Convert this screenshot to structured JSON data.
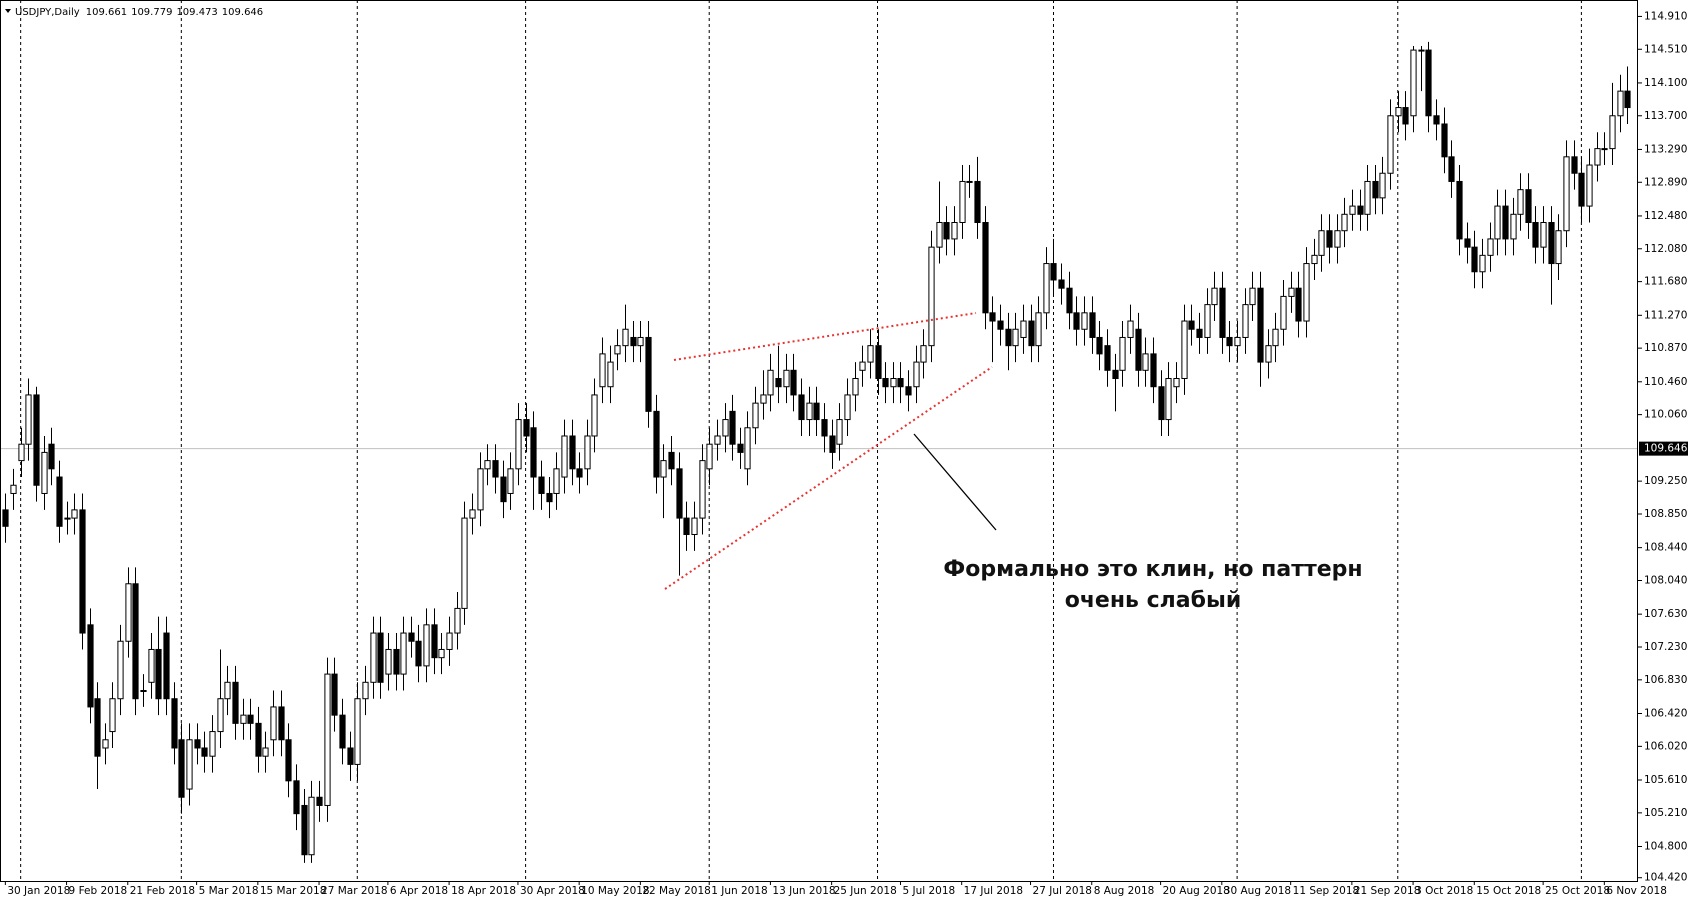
{
  "chart_data": {
    "type": "candlestick",
    "symbol": "USDJPY,Daily",
    "quote": [
      109.661,
      109.779,
      109.473,
      109.646
    ],
    "annotation": [
      "Формально это клин, но паттерн",
      "очень слабый"
    ],
    "up_color": "#ffffff",
    "down_color": "#000000",
    "xlim": [
      -0.7,
      213.4
    ],
    "ylim": [
      104.38,
      115.11
    ],
    "yticks": [
      {
        "value": 114.91,
        "label": "114.910"
      },
      {
        "value": 114.51,
        "label": "114.510"
      },
      {
        "value": 114.1,
        "label": "114.100"
      },
      {
        "value": 113.7,
        "label": "113.700"
      },
      {
        "value": 113.29,
        "label": "113.290"
      },
      {
        "value": 112.89,
        "label": "112.890"
      },
      {
        "value": 112.48,
        "label": "112.480"
      },
      {
        "value": 112.08,
        "label": "112.080"
      },
      {
        "value": 111.68,
        "label": "111.680"
      },
      {
        "value": 111.27,
        "label": "111.270"
      },
      {
        "value": 110.87,
        "label": "110.870"
      },
      {
        "value": 110.46,
        "label": "110.460"
      },
      {
        "value": 110.06,
        "label": "110.060"
      },
      {
        "value": 109.25,
        "label": "109.250"
      },
      {
        "value": 108.85,
        "label": "108.850"
      },
      {
        "value": 108.44,
        "label": "108.440"
      },
      {
        "value": 108.04,
        "label": "108.040"
      },
      {
        "value": 107.63,
        "label": "107.630"
      },
      {
        "value": 107.23,
        "label": "107.230"
      },
      {
        "value": 106.83,
        "label": "106.830"
      },
      {
        "value": 106.42,
        "label": "106.420"
      },
      {
        "value": 106.02,
        "label": "106.020"
      },
      {
        "value": 105.61,
        "label": "105.610"
      },
      {
        "value": 105.21,
        "label": "105.210"
      },
      {
        "value": 104.8,
        "label": "104.800"
      },
      {
        "value": 104.42,
        "label": "104.420"
      }
    ],
    "xticks": [
      {
        "value": 0,
        "label": "30 Jan 2018"
      },
      {
        "value": 8,
        "label": "9 Feb 2018"
      },
      {
        "value": 16,
        "label": "21 Feb 2018"
      },
      {
        "value": 25,
        "label": "5 Mar 2018"
      },
      {
        "value": 33,
        "label": "15 Mar 2018"
      },
      {
        "value": 41,
        "label": "27 Mar 2018"
      },
      {
        "value": 50,
        "label": "6 Apr 2018"
      },
      {
        "value": 58,
        "label": "18 Apr 2018"
      },
      {
        "value": 67,
        "label": "30 Apr 2018"
      },
      {
        "value": 75,
        "label": "10 May 2018"
      },
      {
        "value": 83,
        "label": "22 May 2018"
      },
      {
        "value": 92,
        "label": "1 Jun 2018"
      },
      {
        "value": 100,
        "label": "13 Jun 2018"
      },
      {
        "value": 108,
        "label": "25 Jun 2018"
      },
      {
        "value": 117,
        "label": "5 Jul 2018"
      },
      {
        "value": 125,
        "label": "17 Jul 2018"
      },
      {
        "value": 134,
        "label": "27 Jul 2018"
      },
      {
        "value": 142,
        "label": "8 Aug 2018"
      },
      {
        "value": 151,
        "label": "20 Aug 2018"
      },
      {
        "value": 159,
        "label": "30 Aug 2018"
      },
      {
        "value": 168,
        "label": "11 Sep 2018"
      },
      {
        "value": 176,
        "label": "21 Sep 2018"
      },
      {
        "value": 184,
        "label": "3 Oct 2018"
      },
      {
        "value": 192,
        "label": "15 Oct 2018"
      },
      {
        "value": 201,
        "label": "25 Oct 2018"
      },
      {
        "value": 209,
        "label": "6 Nov 2018"
      }
    ],
    "xgrid": [
      2,
      23,
      46,
      68,
      92,
      114,
      137,
      161,
      182,
      206
    ],
    "open": [
      108.9,
      109.1,
      109.5,
      109.7,
      110.3,
      109.1,
      109.7,
      109.3,
      108.8,
      108.8,
      108.9,
      107.5,
      106.6,
      106.0,
      106.2,
      106.6,
      107.3,
      108.0,
      106.7,
      106.8,
      107.2,
      107.4,
      106.6,
      106.1,
      105.5,
      106.1,
      106.0,
      105.9,
      106.2,
      106.6,
      106.8,
      106.3,
      106.4,
      106.3,
      105.9,
      106.1,
      106.5,
      106.1,
      105.6,
      105.3,
      104.7,
      105.4,
      105.3,
      106.9,
      106.4,
      106.0,
      105.8,
      106.6,
      106.8,
      107.4,
      106.9,
      107.2,
      106.9,
      107.4,
      107.3,
      107.0,
      107.5,
      107.1,
      107.2,
      107.4,
      107.7,
      108.8,
      108.9,
      109.4,
      109.5,
      109.3,
      109.1,
      109.4,
      110.0,
      109.9,
      109.3,
      109.1,
      109.1,
      109.3,
      109.8,
      109.4,
      109.4,
      109.8,
      110.4,
      110.4,
      110.8,
      110.9,
      111.0,
      110.9,
      111.0,
      110.1,
      109.3,
      109.6,
      109.4,
      108.8,
      108.6,
      108.8,
      109.4,
      109.7,
      109.8,
      110.1,
      109.7,
      109.4,
      109.9,
      110.2,
      110.3,
      110.5,
      110.4,
      110.6,
      110.3,
      110.0,
      110.2,
      110.0,
      109.8,
      109.7,
      110.0,
      110.3,
      110.6,
      110.7,
      110.9,
      110.5,
      110.4,
      110.5,
      110.4,
      110.4,
      110.7,
      110.9,
      112.1,
      112.4,
      112.2,
      112.4,
      112.9,
      112.9,
      112.4,
      111.3,
      111.2,
      111.1,
      110.9,
      111.0,
      111.2,
      110.9,
      111.3,
      111.9,
      111.7,
      111.6,
      111.3,
      111.1,
      111.3,
      111.0,
      110.9,
      110.6,
      110.6,
      111.0,
      111.1,
      110.6,
      110.8,
      110.4,
      110.0,
      110.4,
      110.5,
      111.2,
      111.1,
      111.0,
      111.4,
      111.6,
      111.0,
      110.9,
      111.0,
      111.4,
      111.6,
      110.7,
      110.9,
      111.1,
      111.5,
      111.6,
      111.2,
      111.9,
      112.0,
      112.3,
      112.1,
      112.3,
      112.5,
      112.6,
      112.5,
      112.9,
      112.7,
      113.0,
      113.7,
      113.8,
      113.7,
      114.5,
      114.5,
      113.7,
      113.6,
      113.2,
      112.9,
      112.2,
      112.1,
      111.8,
      112.0,
      112.2,
      112.6,
      112.2,
      112.5,
      112.8,
      112.4,
      112.1,
      112.4,
      111.9,
      112.3,
      113.2,
      113.0,
      112.6,
      113.1,
      113.3,
      113.3,
      113.7,
      114.0
    ],
    "high": [
      109.1,
      109.4,
      109.9,
      110.5,
      110.4,
      109.8,
      109.9,
      109.5,
      109.0,
      109.1,
      109.1,
      107.7,
      106.8,
      106.3,
      106.8,
      107.5,
      108.2,
      108.2,
      106.9,
      107.4,
      107.6,
      107.6,
      106.8,
      106.3,
      106.3,
      106.3,
      106.2,
      106.4,
      107.2,
      107.0,
      107.0,
      106.6,
      106.6,
      106.5,
      106.2,
      106.7,
      106.7,
      106.3,
      105.8,
      105.5,
      105.6,
      105.6,
      107.1,
      107.1,
      106.6,
      106.2,
      106.8,
      107.0,
      107.6,
      107.6,
      107.4,
      107.4,
      107.6,
      107.6,
      107.5,
      107.7,
      107.7,
      107.4,
      107.6,
      107.9,
      109.0,
      109.1,
      109.6,
      109.7,
      109.7,
      109.5,
      109.6,
      110.2,
      110.2,
      110.1,
      109.5,
      109.3,
      109.6,
      110.0,
      110.0,
      109.6,
      110.0,
      110.5,
      111.0,
      110.9,
      111.1,
      111.4,
      111.2,
      111.2,
      111.2,
      110.3,
      109.7,
      109.8,
      109.6,
      109.0,
      109.0,
      109.7,
      109.9,
      110.0,
      110.2,
      110.3,
      109.9,
      110.1,
      110.4,
      110.6,
      110.8,
      110.9,
      110.8,
      110.8,
      110.5,
      110.4,
      110.4,
      110.2,
      110.0,
      110.2,
      110.5,
      110.7,
      110.9,
      111.1,
      111.1,
      110.7,
      110.7,
      110.7,
      110.6,
      110.9,
      111.1,
      112.3,
      112.9,
      112.6,
      112.6,
      113.1,
      113.1,
      113.2,
      112.6,
      111.5,
      111.4,
      111.3,
      111.3,
      111.4,
      111.4,
      111.5,
      112.1,
      112.2,
      111.9,
      111.8,
      111.5,
      111.5,
      111.5,
      111.2,
      111.1,
      110.8,
      111.2,
      111.4,
      111.3,
      111.0,
      111.0,
      110.6,
      110.7,
      110.7,
      111.4,
      111.4,
      111.3,
      111.6,
      111.8,
      111.8,
      111.2,
      111.2,
      111.6,
      111.8,
      111.8,
      111.1,
      111.3,
      111.7,
      111.8,
      111.8,
      112.1,
      112.2,
      112.5,
      112.5,
      112.5,
      112.7,
      112.8,
      112.8,
      113.1,
      113.1,
      113.2,
      113.9,
      114.0,
      114.0,
      114.55,
      114.55,
      114.6,
      113.9,
      113.8,
      113.4,
      113.1,
      112.4,
      112.3,
      112.2,
      112.4,
      112.8,
      112.8,
      112.7,
      113.0,
      113.0,
      112.6,
      112.6,
      112.6,
      112.5,
      113.4,
      113.4,
      113.2,
      113.3,
      113.5,
      113.5,
      114.1,
      114.2,
      114.3
    ],
    "low": [
      108.5,
      108.9,
      109.3,
      109.5,
      109.0,
      108.9,
      109.2,
      108.5,
      108.6,
      108.6,
      107.2,
      106.3,
      105.5,
      105.8,
      106.0,
      106.4,
      107.1,
      106.4,
      106.5,
      106.6,
      106.4,
      106.4,
      105.8,
      105.2,
      105.3,
      105.8,
      105.7,
      105.7,
      106.0,
      106.4,
      106.1,
      106.1,
      106.1,
      105.7,
      105.7,
      105.9,
      105.9,
      105.4,
      105.0,
      104.6,
      104.6,
      105.1,
      105.1,
      106.2,
      105.8,
      105.6,
      105.6,
      106.4,
      106.6,
      106.6,
      106.7,
      106.7,
      106.7,
      107.1,
      106.8,
      106.8,
      106.9,
      106.9,
      107.0,
      107.2,
      107.5,
      108.6,
      108.7,
      109.2,
      109.1,
      108.8,
      108.9,
      109.2,
      109.6,
      108.9,
      108.9,
      108.8,
      108.9,
      109.1,
      109.2,
      109.1,
      109.2,
      109.6,
      110.2,
      110.2,
      110.6,
      110.7,
      110.7,
      110.7,
      109.9,
      109.1,
      108.8,
      109.2,
      108.1,
      108.4,
      108.4,
      108.6,
      109.2,
      109.5,
      109.6,
      109.5,
      109.4,
      109.2,
      109.7,
      110.0,
      110.1,
      110.2,
      110.2,
      110.1,
      109.8,
      109.8,
      109.8,
      109.6,
      109.4,
      109.5,
      109.8,
      110.1,
      110.4,
      110.5,
      110.3,
      110.2,
      110.2,
      110.2,
      110.1,
      110.2,
      110.5,
      110.7,
      111.9,
      112.0,
      112.0,
      112.2,
      112.7,
      112.2,
      111.1,
      110.7,
      110.9,
      110.6,
      110.7,
      110.8,
      110.7,
      110.7,
      111.1,
      111.5,
      111.4,
      111.1,
      110.9,
      110.9,
      110.8,
      110.6,
      110.4,
      110.1,
      110.4,
      110.8,
      110.4,
      110.4,
      110.2,
      109.8,
      109.8,
      110.2,
      110.3,
      110.9,
      110.8,
      110.8,
      111.2,
      110.8,
      110.7,
      110.7,
      110.8,
      111.2,
      110.4,
      110.5,
      110.7,
      110.9,
      111.3,
      111.0,
      111.0,
      111.7,
      111.8,
      111.9,
      111.9,
      112.1,
      112.3,
      112.3,
      112.3,
      112.5,
      112.5,
      112.8,
      113.5,
      113.4,
      113.5,
      114.0,
      113.5,
      113.4,
      113.0,
      112.7,
      112.0,
      111.9,
      111.6,
      111.6,
      111.8,
      112.0,
      112.0,
      112.0,
      112.3,
      112.2,
      111.9,
      111.9,
      111.4,
      111.7,
      112.1,
      112.8,
      112.4,
      112.4,
      112.9,
      113.1,
      113.1,
      113.5,
      113.6
    ],
    "close": [
      108.7,
      109.2,
      109.7,
      110.3,
      109.2,
      109.6,
      109.4,
      108.7,
      108.8,
      108.9,
      107.4,
      106.5,
      105.9,
      106.1,
      106.6,
      107.3,
      108.0,
      106.6,
      106.7,
      107.2,
      106.6,
      106.6,
      106.0,
      105.4,
      106.1,
      106.0,
      105.9,
      106.2,
      106.6,
      106.8,
      106.3,
      106.4,
      106.3,
      105.9,
      106.0,
      106.5,
      106.1,
      105.6,
      105.2,
      104.7,
      105.4,
      105.3,
      106.9,
      106.4,
      106.0,
      105.8,
      106.6,
      106.8,
      107.4,
      106.8,
      107.2,
      106.9,
      107.4,
      107.3,
      107.0,
      107.5,
      107.1,
      107.2,
      107.4,
      107.7,
      108.8,
      108.9,
      109.4,
      109.5,
      109.3,
      109.0,
      109.4,
      110.0,
      109.8,
      109.3,
      109.1,
      109.0,
      109.4,
      109.8,
      109.4,
      109.3,
      109.8,
      110.3,
      110.8,
      110.7,
      110.9,
      111.1,
      110.9,
      111.0,
      110.1,
      109.3,
      109.5,
      109.4,
      108.8,
      108.6,
      108.8,
      109.5,
      109.7,
      109.8,
      110.0,
      109.7,
      109.6,
      109.9,
      110.2,
      110.3,
      110.6,
      110.4,
      110.6,
      110.3,
      110.0,
      110.2,
      110.0,
      109.8,
      109.6,
      110.0,
      110.3,
      110.5,
      110.7,
      110.9,
      110.5,
      110.4,
      110.5,
      110.4,
      110.3,
      110.7,
      110.9,
      112.1,
      112.4,
      112.2,
      112.4,
      112.9,
      112.9,
      112.4,
      111.3,
      111.2,
      111.1,
      110.9,
      111.1,
      111.2,
      110.9,
      111.3,
      111.9,
      111.7,
      111.6,
      111.3,
      111.1,
      111.3,
      111.0,
      110.8,
      110.6,
      110.5,
      111.0,
      111.2,
      110.6,
      110.8,
      110.4,
      110.0,
      110.5,
      110.5,
      111.2,
      111.1,
      111.0,
      111.4,
      111.6,
      111.0,
      110.9,
      111.0,
      111.4,
      111.6,
      110.7,
      110.9,
      111.1,
      111.5,
      111.6,
      111.2,
      111.9,
      112.0,
      112.3,
      112.1,
      112.3,
      112.5,
      112.6,
      112.5,
      112.9,
      112.7,
      113.0,
      113.7,
      113.8,
      113.6,
      114.5,
      114.5,
      113.7,
      113.6,
      113.2,
      112.9,
      112.2,
      112.1,
      111.8,
      112.0,
      112.2,
      112.6,
      112.2,
      112.5,
      112.8,
      112.4,
      112.1,
      112.4,
      111.9,
      112.3,
      113.2,
      113.0,
      112.6,
      113.1,
      113.3,
      113.3,
      113.7,
      114.0,
      113.8
    ]
  }
}
